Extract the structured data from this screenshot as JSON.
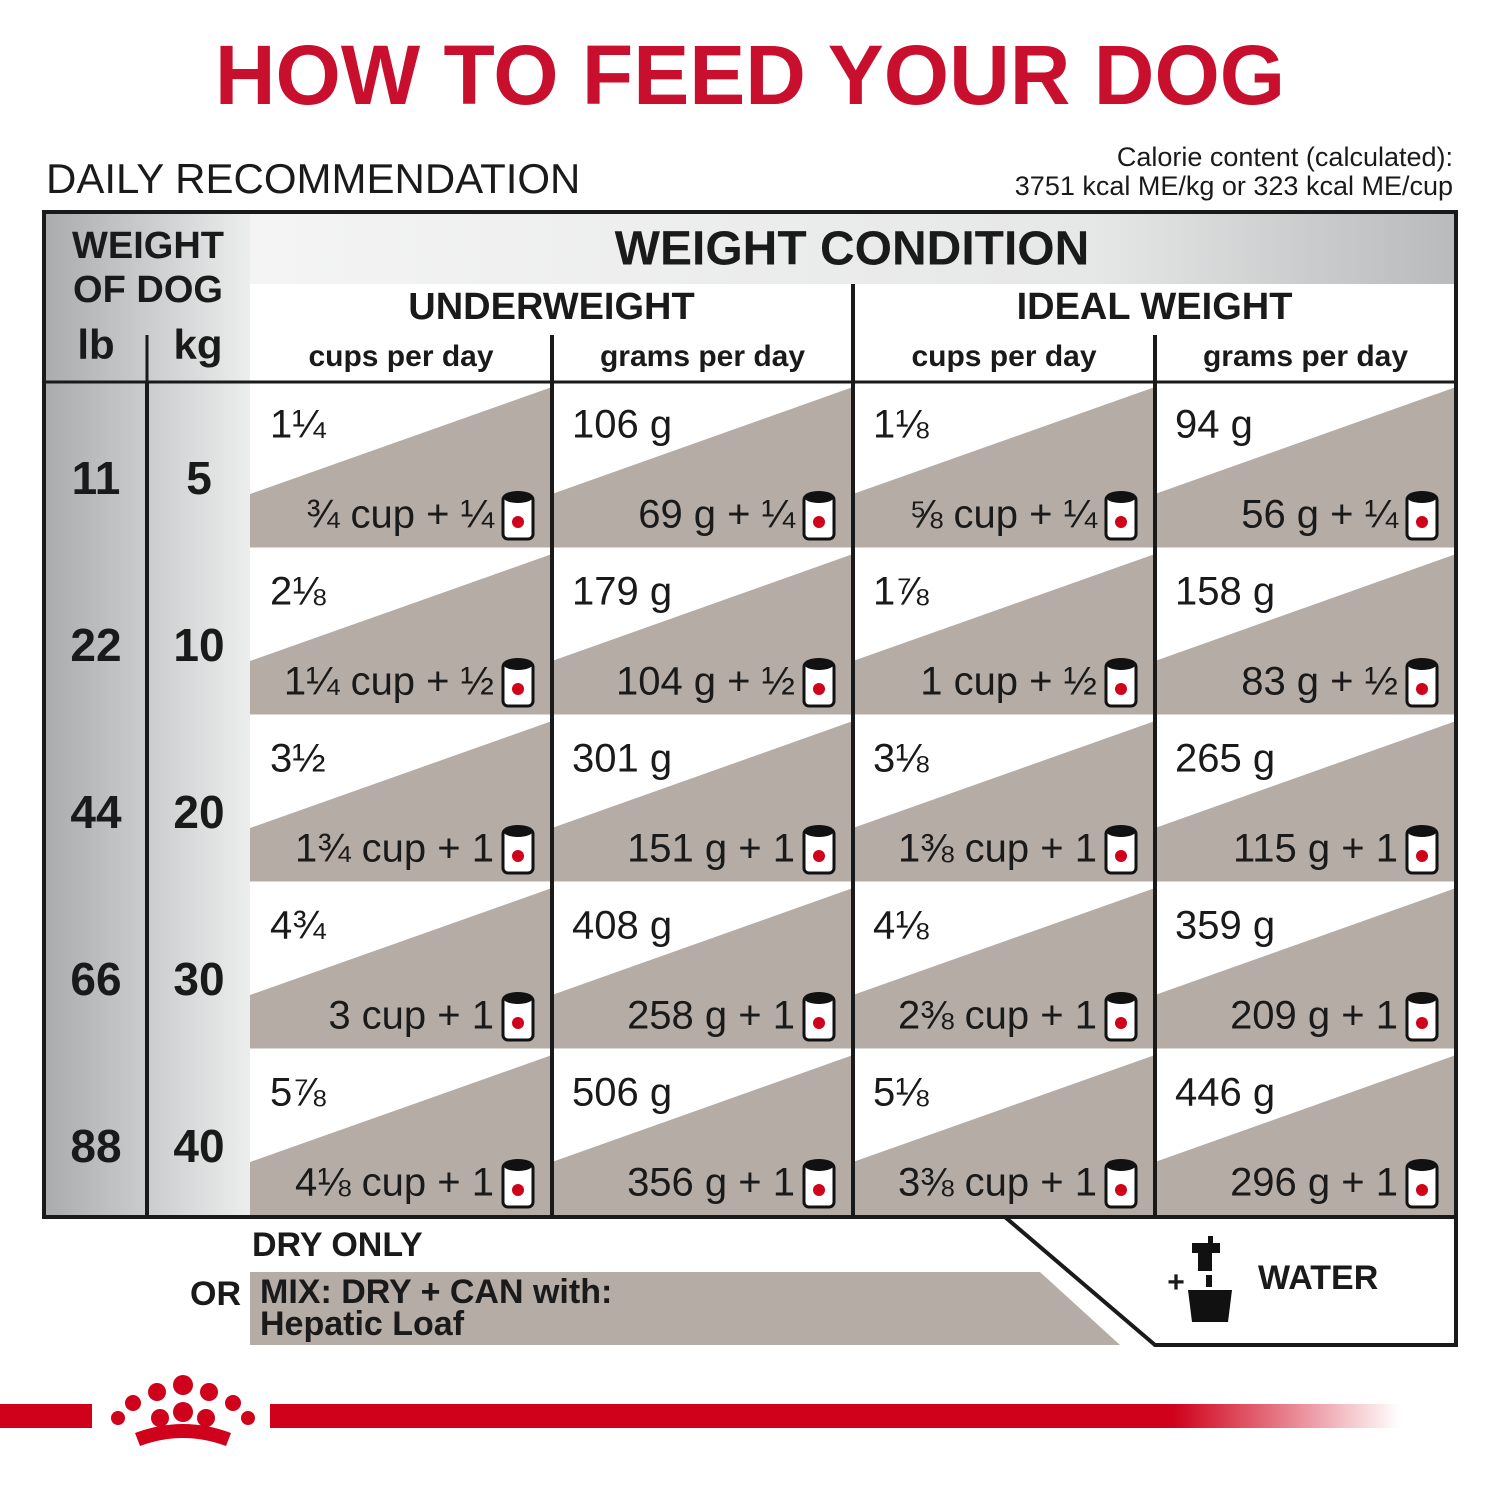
{
  "title": "HOW TO FEED YOUR DOG",
  "subtitle": "DAILY RECOMMENDATION",
  "calorie": [
    "Calorie content (calculated):",
    "3751 kcal ME/kg or 323 kcal ME/cup"
  ],
  "table": {
    "header": {
      "weight": [
        "WEIGHT",
        "OF DOG"
      ],
      "lb": "lb",
      "kg": "kg",
      "condition": "WEIGHT CONDITION",
      "groups": [
        {
          "name": "UNDERWEIGHT",
          "cols": [
            "cups per day",
            "grams per day"
          ]
        },
        {
          "name": "IDEAL WEIGHT",
          "cols": [
            "cups per day",
            "grams per day"
          ]
        }
      ]
    },
    "rows": [
      {
        "lb": 11,
        "kg": 5,
        "cells": [
          {
            "dry": "1¼",
            "mix": "¾ cup + ¼"
          },
          {
            "dry": "106 g",
            "mix": "69 g + ¼"
          },
          {
            "dry": "1⅛",
            "mix": "⅝ cup + ¼"
          },
          {
            "dry": "94 g",
            "mix": "56 g + ¼"
          }
        ]
      },
      {
        "lb": 22,
        "kg": 10,
        "cells": [
          {
            "dry": "2⅛",
            "mix": "1¼ cup + ½"
          },
          {
            "dry": "179 g",
            "mix": "104 g + ½"
          },
          {
            "dry": "1⅞",
            "mix": "1 cup + ½"
          },
          {
            "dry": "158 g",
            "mix": "83 g + ½"
          }
        ]
      },
      {
        "lb": 44,
        "kg": 20,
        "cells": [
          {
            "dry": "3½",
            "mix": "1¾ cup + 1"
          },
          {
            "dry": "301 g",
            "mix": "151 g + 1"
          },
          {
            "dry": "3⅛",
            "mix": "1⅜ cup + 1"
          },
          {
            "dry": "265 g",
            "mix": "115 g + 1"
          }
        ]
      },
      {
        "lb": 66,
        "kg": 30,
        "cells": [
          {
            "dry": "4¾",
            "mix": "3 cup + 1"
          },
          {
            "dry": "408 g",
            "mix": "258 g + 1"
          },
          {
            "dry": "4⅛",
            "mix": "2⅜ cup + 1"
          },
          {
            "dry": "359 g",
            "mix": "209 g + 1"
          }
        ]
      },
      {
        "lb": 88,
        "kg": 40,
        "cells": [
          {
            "dry": "5⅞",
            "mix": "4⅛ cup + 1"
          },
          {
            "dry": "506 g",
            "mix": "356 g + 1"
          },
          {
            "dry": "5⅛",
            "mix": "3⅜ cup + 1"
          },
          {
            "dry": "446 g",
            "mix": "296 g + 1"
          }
        ]
      }
    ]
  },
  "legend": {
    "dry": "DRY ONLY",
    "or": "OR",
    "mix": "MIX: DRY + CAN with:",
    "product": "Hepatic Loaf",
    "plus": "+",
    "water": "WATER"
  }
}
